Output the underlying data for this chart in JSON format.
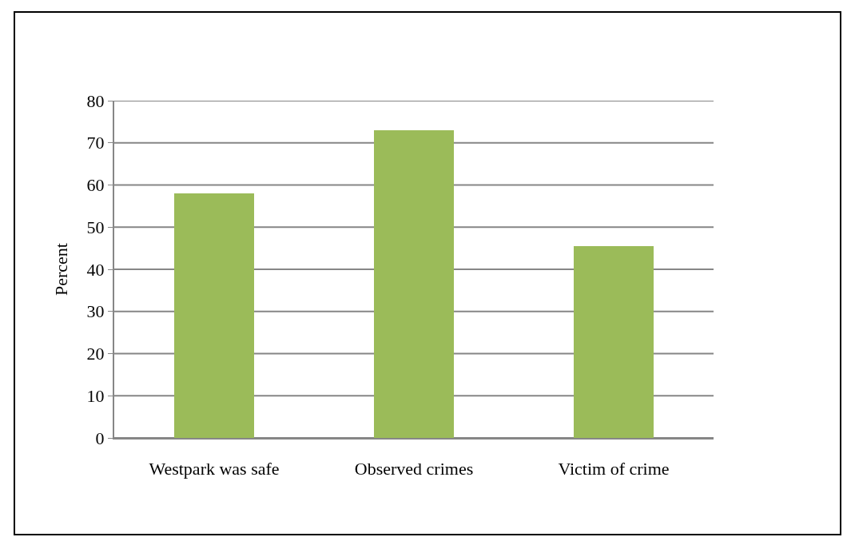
{
  "chart_data": {
    "type": "bar",
    "ylabel": "Percent",
    "categories": [
      "Westpark was safe",
      "Observed crimes",
      "Victim of crime"
    ],
    "values": [
      58,
      73,
      45.5
    ],
    "color": "#9bbb59",
    "ylim": [
      0,
      80
    ],
    "yticks": [
      0,
      10,
      20,
      30,
      40,
      50,
      60,
      70,
      80
    ],
    "grid": "y"
  }
}
